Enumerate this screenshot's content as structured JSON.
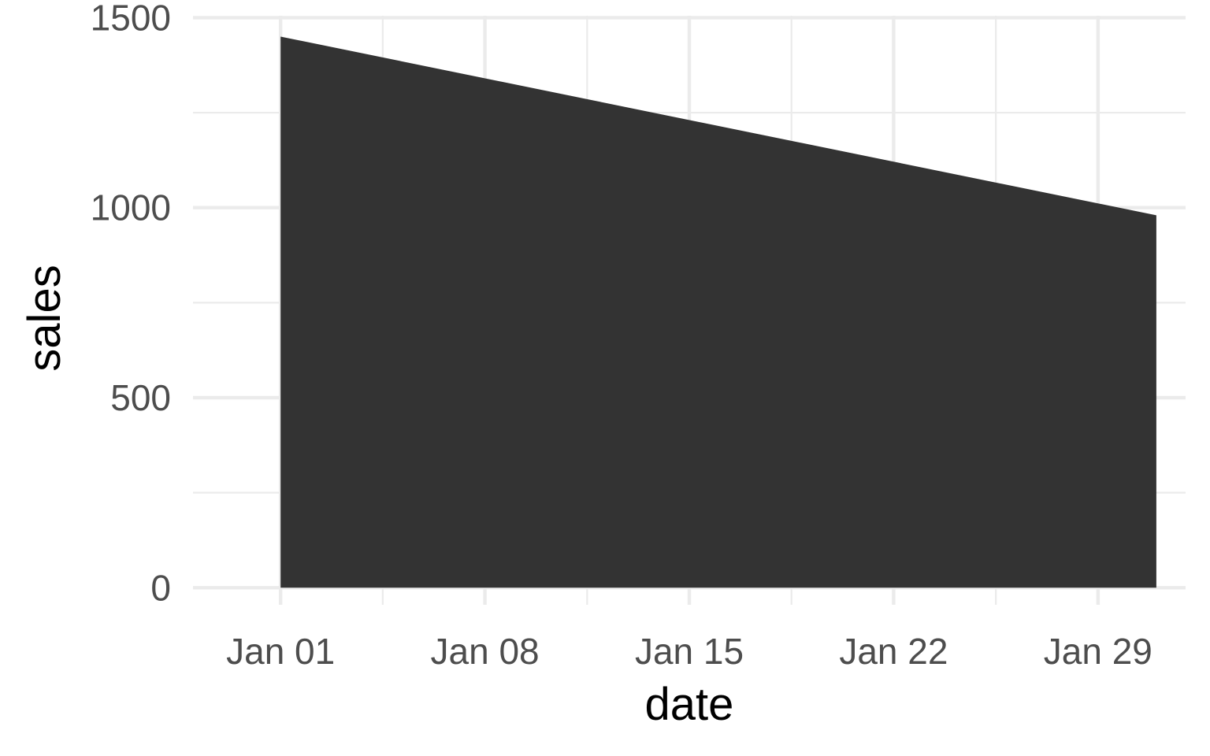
{
  "chart_data": {
    "type": "area",
    "xlabel": "date",
    "ylabel": "sales",
    "x_axis": {
      "kind": "date",
      "range": [
        "2023-12-29",
        "2024-02-01"
      ],
      "ticks": [
        "Jan 01",
        "Jan 08",
        "Jan 15",
        "Jan 22",
        "Jan 29"
      ],
      "tick_dates": [
        "2024-01-01",
        "2024-01-08",
        "2024-01-15",
        "2024-01-22",
        "2024-01-29"
      ]
    },
    "y_axis": {
      "range": [
        -45,
        1505
      ],
      "ticks": [
        "0",
        "500",
        "1000",
        "1500"
      ],
      "tick_values": [
        0,
        500,
        1000,
        1500
      ]
    },
    "grid": true,
    "fill_color": "#333333",
    "series": [
      {
        "points": [
          {
            "x": "2024-01-01",
            "y": 1450
          },
          {
            "x": "2024-01-31",
            "y": 980
          }
        ]
      }
    ]
  }
}
